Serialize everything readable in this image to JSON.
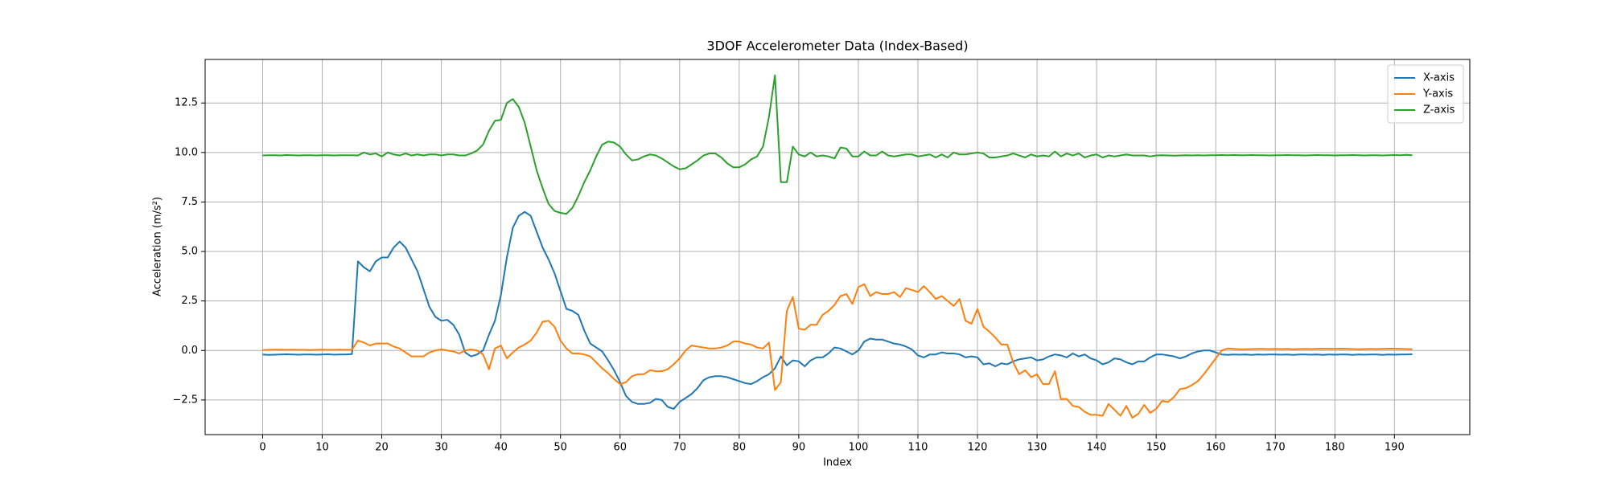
{
  "chart_data": {
    "type": "line",
    "title": "3DOF Accelerometer Data (Index-Based)",
    "xlabel": "Index",
    "ylabel": "Acceleration (m/s²)",
    "x": [
      0,
      1,
      2,
      3,
      4,
      5,
      6,
      7,
      8,
      9,
      10,
      11,
      12,
      13,
      14,
      15,
      16,
      17,
      18,
      19,
      20,
      21,
      22,
      23,
      24,
      25,
      26,
      27,
      28,
      29,
      30,
      31,
      32,
      33,
      34,
      35,
      36,
      37,
      38,
      39,
      40,
      41,
      42,
      43,
      44,
      45,
      46,
      47,
      48,
      49,
      50,
      51,
      52,
      53,
      54,
      55,
      56,
      57,
      58,
      59,
      60,
      61,
      62,
      63,
      64,
      65,
      66,
      67,
      68,
      69,
      70,
      71,
      72,
      73,
      74,
      75,
      76,
      77,
      78,
      79,
      80,
      81,
      82,
      83,
      84,
      85,
      86,
      87,
      88,
      89,
      90,
      91,
      92,
      93,
      94,
      95,
      96,
      97,
      98,
      99,
      100,
      101,
      102,
      103,
      104,
      105,
      106,
      107,
      108,
      109,
      110,
      111,
      112,
      113,
      114,
      115,
      116,
      117,
      118,
      119,
      120,
      121,
      122,
      123,
      124,
      125,
      126,
      127,
      128,
      129,
      130,
      131,
      132,
      133,
      134,
      135,
      136,
      137,
      138,
      139,
      140,
      141,
      142,
      143,
      144,
      145,
      146,
      147,
      148,
      149,
      150,
      151,
      152,
      153,
      154,
      155,
      156,
      157,
      158,
      159,
      160,
      161,
      162,
      163,
      164,
      165,
      166,
      167,
      168,
      169,
      170,
      171,
      172,
      173,
      174,
      175,
      176,
      177,
      178,
      179,
      180,
      181,
      182,
      183,
      184,
      185,
      186,
      187,
      188,
      189,
      190,
      191,
      192,
      193
    ],
    "series": [
      {
        "name": "X-axis",
        "color": "#1f77b4",
        "values": [
          -0.2,
          -0.22,
          -0.21,
          -0.2,
          -0.19,
          -0.2,
          -0.21,
          -0.2,
          -0.2,
          -0.21,
          -0.2,
          -0.19,
          -0.21,
          -0.2,
          -0.2,
          -0.18,
          4.5,
          4.2,
          4.0,
          4.5,
          4.7,
          4.7,
          5.2,
          5.5,
          5.2,
          4.6,
          4.0,
          3.1,
          2.2,
          1.7,
          1.5,
          1.55,
          1.3,
          0.8,
          -0.1,
          -0.3,
          -0.2,
          0.0,
          0.8,
          1.5,
          2.8,
          4.7,
          6.2,
          6.8,
          7.0,
          6.8,
          6.0,
          5.2,
          4.6,
          3.9,
          3.0,
          2.1,
          2.0,
          1.8,
          1.0,
          0.35,
          0.15,
          -0.05,
          -0.5,
          -1.0,
          -1.6,
          -2.3,
          -2.6,
          -2.7,
          -2.7,
          -2.65,
          -2.45,
          -2.5,
          -2.85,
          -2.95,
          -2.6,
          -2.4,
          -2.2,
          -1.9,
          -1.5,
          -1.35,
          -1.3,
          -1.3,
          -1.35,
          -1.45,
          -1.55,
          -1.65,
          -1.7,
          -1.55,
          -1.35,
          -1.2,
          -0.9,
          -0.3,
          -0.75,
          -0.5,
          -0.55,
          -0.8,
          -0.5,
          -0.35,
          -0.35,
          -0.15,
          0.15,
          0.1,
          -0.05,
          -0.2,
          0.0,
          0.45,
          0.6,
          0.55,
          0.55,
          0.45,
          0.35,
          0.3,
          0.2,
          0.05,
          -0.25,
          -0.35,
          -0.2,
          -0.2,
          -0.1,
          -0.15,
          -0.15,
          -0.2,
          -0.35,
          -0.3,
          -0.35,
          -0.7,
          -0.65,
          -0.8,
          -0.65,
          -0.7,
          -0.55,
          -0.45,
          -0.4,
          -0.35,
          -0.5,
          -0.45,
          -0.3,
          -0.2,
          -0.25,
          -0.35,
          -0.15,
          -0.3,
          -0.2,
          -0.4,
          -0.5,
          -0.7,
          -0.6,
          -0.4,
          -0.45,
          -0.6,
          -0.7,
          -0.55,
          -0.55,
          -0.35,
          -0.2,
          -0.2,
          -0.25,
          -0.3,
          -0.4,
          -0.3,
          -0.15,
          -0.05,
          0.0,
          0.0,
          -0.1,
          -0.2,
          -0.22,
          -0.2,
          -0.21,
          -0.2,
          -0.22,
          -0.2,
          -0.21,
          -0.2,
          -0.2,
          -0.21,
          -0.2,
          -0.22,
          -0.2,
          -0.2,
          -0.21,
          -0.2,
          -0.22,
          -0.2,
          -0.21,
          -0.2,
          -0.2,
          -0.22,
          -0.2,
          -0.21,
          -0.2,
          -0.2,
          -0.22,
          -0.2,
          -0.21,
          -0.2,
          -0.2,
          -0.19
        ]
      },
      {
        "name": "Y-axis",
        "color": "#ff7f0e",
        "values": [
          0.02,
          0.03,
          0.04,
          0.04,
          0.03,
          0.04,
          0.03,
          0.03,
          0.02,
          0.03,
          0.04,
          0.03,
          0.03,
          0.04,
          0.03,
          0.04,
          0.5,
          0.4,
          0.25,
          0.35,
          0.35,
          0.35,
          0.2,
          0.1,
          -0.1,
          -0.3,
          -0.3,
          -0.3,
          -0.1,
          0.0,
          0.05,
          0.0,
          -0.05,
          -0.15,
          0.0,
          0.05,
          0.0,
          -0.2,
          -0.95,
          0.1,
          0.25,
          -0.4,
          -0.1,
          0.15,
          0.3,
          0.5,
          0.9,
          1.45,
          1.5,
          1.2,
          0.5,
          0.1,
          -0.15,
          -0.15,
          -0.2,
          -0.3,
          -0.6,
          -0.9,
          -1.15,
          -1.45,
          -1.7,
          -1.6,
          -1.3,
          -1.2,
          -1.2,
          -1.0,
          -1.05,
          -1.05,
          -0.95,
          -0.7,
          -0.4,
          0.0,
          0.25,
          0.2,
          0.15,
          0.1,
          0.1,
          0.15,
          0.25,
          0.45,
          0.45,
          0.35,
          0.3,
          0.15,
          0.1,
          0.4,
          -2.0,
          -1.6,
          2.0,
          2.7,
          1.1,
          1.05,
          1.3,
          1.3,
          1.8,
          2.0,
          2.3,
          2.75,
          2.85,
          2.35,
          3.2,
          3.35,
          2.75,
          2.95,
          2.85,
          2.85,
          2.95,
          2.7,
          3.15,
          3.05,
          2.95,
          3.25,
          2.95,
          2.6,
          2.75,
          2.5,
          2.25,
          2.6,
          1.5,
          1.35,
          2.1,
          1.2,
          0.95,
          0.65,
          0.3,
          0.3,
          -0.6,
          -1.2,
          -1.0,
          -1.35,
          -1.2,
          -1.7,
          -1.7,
          -1.05,
          -2.45,
          -2.45,
          -2.8,
          -2.85,
          -3.1,
          -3.25,
          -3.25,
          -3.3,
          -2.7,
          -3.0,
          -3.3,
          -2.8,
          -3.4,
          -3.2,
          -2.75,
          -3.15,
          -2.95,
          -2.55,
          -2.6,
          -2.35,
          -1.95,
          -1.9,
          -1.75,
          -1.55,
          -1.2,
          -0.8,
          -0.4,
          0.0,
          0.1,
          0.08,
          0.06,
          0.06,
          0.07,
          0.08,
          0.08,
          0.07,
          0.08,
          0.07,
          0.08,
          0.06,
          0.07,
          0.08,
          0.07,
          0.08,
          0.09,
          0.08,
          0.08,
          0.09,
          0.08,
          0.07,
          0.06,
          0.07,
          0.08,
          0.07,
          0.08,
          0.09,
          0.09,
          0.08,
          0.07,
          0.06
        ]
      },
      {
        "name": "Z-axis",
        "color": "#2ca02c",
        "values": [
          9.85,
          9.86,
          9.86,
          9.85,
          9.87,
          9.86,
          9.85,
          9.86,
          9.86,
          9.85,
          9.86,
          9.86,
          9.85,
          9.86,
          9.86,
          9.86,
          9.85,
          10.0,
          9.9,
          9.95,
          9.8,
          10.0,
          9.9,
          9.85,
          9.95,
          9.85,
          9.9,
          9.85,
          9.9,
          9.9,
          9.85,
          9.9,
          9.9,
          9.85,
          9.85,
          9.95,
          10.1,
          10.4,
          11.1,
          11.6,
          11.65,
          12.5,
          12.7,
          12.3,
          11.5,
          10.3,
          9.1,
          8.2,
          7.4,
          7.05,
          6.95,
          6.9,
          7.2,
          7.8,
          8.5,
          9.1,
          9.8,
          10.4,
          10.55,
          10.5,
          10.3,
          9.9,
          9.6,
          9.65,
          9.8,
          9.9,
          9.85,
          9.7,
          9.5,
          9.3,
          9.15,
          9.2,
          9.4,
          9.6,
          9.85,
          9.95,
          9.95,
          9.75,
          9.45,
          9.25,
          9.25,
          9.4,
          9.65,
          9.8,
          10.3,
          11.8,
          13.9,
          8.5,
          8.5,
          10.3,
          9.9,
          9.8,
          10.0,
          9.8,
          9.85,
          9.8,
          9.7,
          10.25,
          10.2,
          9.8,
          9.8,
          10.05,
          9.85,
          9.85,
          10.05,
          9.85,
          9.8,
          9.85,
          9.9,
          9.9,
          9.8,
          9.85,
          9.9,
          9.75,
          9.9,
          9.75,
          10.0,
          9.9,
          9.9,
          9.95,
          10.0,
          9.95,
          9.75,
          9.75,
          9.8,
          9.85,
          9.95,
          9.85,
          9.75,
          9.9,
          9.8,
          9.85,
          9.8,
          10.05,
          9.8,
          9.95,
          9.85,
          9.95,
          9.75,
          9.85,
          9.9,
          9.75,
          9.85,
          9.8,
          9.85,
          9.9,
          9.85,
          9.85,
          9.85,
          9.8,
          9.85,
          9.86,
          9.85,
          9.84,
          9.85,
          9.86,
          9.85,
          9.86,
          9.85,
          9.86,
          9.86,
          9.87,
          9.86,
          9.87,
          9.86,
          9.86,
          9.87,
          9.86,
          9.86,
          9.85,
          9.86,
          9.86,
          9.87,
          9.86,
          9.86,
          9.85,
          9.86,
          9.87,
          9.86,
          9.86,
          9.85,
          9.86,
          9.86,
          9.87,
          9.86,
          9.85,
          9.86,
          9.86,
          9.85,
          9.86,
          9.87,
          9.86,
          9.88,
          9.86
        ]
      }
    ],
    "xlim": [
      -9.65,
      202.65
    ],
    "xticks": [
      0,
      10,
      20,
      30,
      40,
      50,
      60,
      70,
      80,
      90,
      100,
      110,
      120,
      130,
      140,
      150,
      160,
      170,
      180,
      190
    ],
    "ylim": [
      -4.25,
      14.7
    ],
    "yticks": [
      {
        "value": -2.5,
        "label": "−2.5"
      },
      {
        "value": 0,
        "label": "0.0"
      },
      2.5,
      {
        "value": 5,
        "label": "5.0"
      },
      7.5,
      {
        "value": 10,
        "label": "10.0"
      },
      12.5
    ],
    "grid": true,
    "legend": "upper right"
  }
}
